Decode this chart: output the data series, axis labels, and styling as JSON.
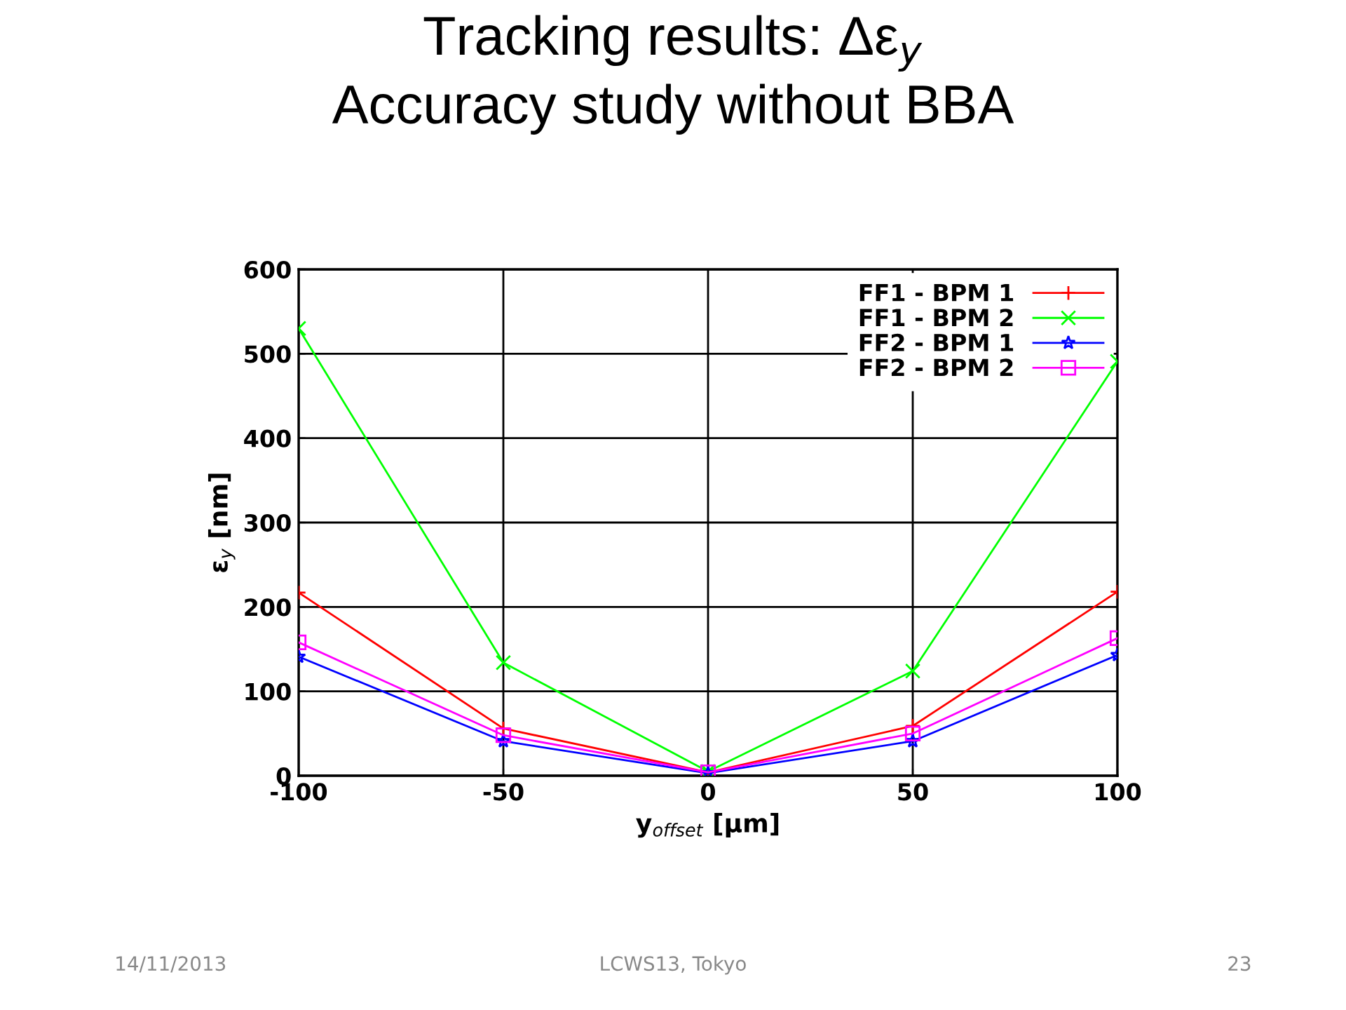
{
  "chart_data": {
    "type": "line",
    "title": "Tracking results: Δε$_{y}$\nAccuracy study without BBA",
    "xlabel": "y$_{offset}$ [μm]",
    "ylabel": "ε$_{y}$ [nm]",
    "x": [
      -100,
      -50,
      0,
      50,
      100
    ],
    "series": [
      {
        "name": "FF1 - BPM 1",
        "color": "#ff0000",
        "marker": "cross",
        "values": [
          217,
          56,
          4,
          59,
          218
        ]
      },
      {
        "name": "FF1 - BPM 2",
        "color": "#00ff00",
        "marker": "x",
        "values": [
          530,
          134,
          5,
          124,
          491
        ]
      },
      {
        "name": "FF2 - BPM 1",
        "color": "#0000ff",
        "marker": "star",
        "values": [
          141,
          41,
          3,
          41,
          143
        ]
      },
      {
        "name": "FF2 - BPM 2",
        "color": "#ff00ff",
        "marker": "square",
        "values": [
          158,
          48,
          4,
          50,
          163
        ]
      }
    ],
    "xlim": [
      -100,
      100
    ],
    "xticks": [
      -100,
      -50,
      0,
      50,
      100
    ],
    "ylim": [
      0,
      600
    ],
    "yticks": [
      0,
      100,
      200,
      300,
      400,
      500,
      600
    ],
    "grid": true,
    "legend": "top right",
    "annotations": [
      "14/11/2013",
      "LCWS13, Tokyo",
      "23"
    ]
  }
}
